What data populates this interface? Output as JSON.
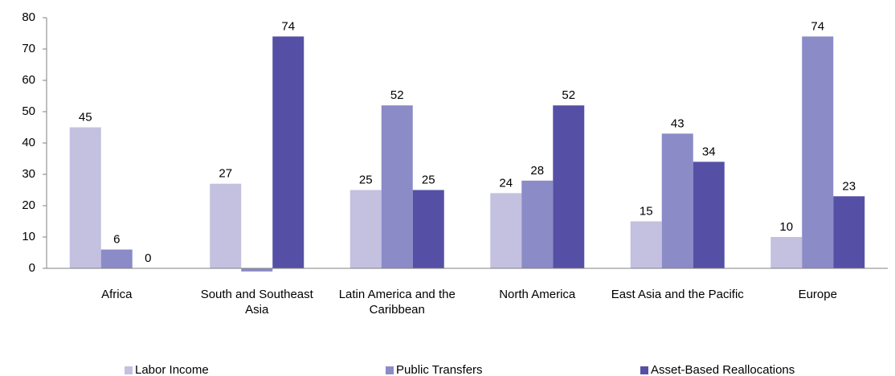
{
  "chart_data": {
    "type": "bar",
    "categories": [
      "Africa",
      "South and Southeast Asia",
      "Latin America and the Caribbean",
      "North America",
      "East Asia and the Pacific",
      "Europe"
    ],
    "series": [
      {
        "name": "Labor Income",
        "color": "#c3c0e0",
        "values": [
          45,
          27,
          25,
          24,
          15,
          10
        ]
      },
      {
        "name": "Public Transfers",
        "color": "#8b8bc8",
        "values": [
          6,
          -1,
          52,
          28,
          43,
          74
        ],
        "value_labels": [
          "6",
          null,
          "52",
          "28",
          "43",
          "74"
        ]
      },
      {
        "name": "Asset-Based Reallocations",
        "color": "#5550a5",
        "values": [
          0,
          74,
          25,
          52,
          34,
          23
        ]
      }
    ],
    "ylim": [
      0,
      80
    ],
    "yticks": [
      0,
      10,
      20,
      30,
      40,
      50,
      60,
      70,
      80
    ],
    "grid": false
  }
}
